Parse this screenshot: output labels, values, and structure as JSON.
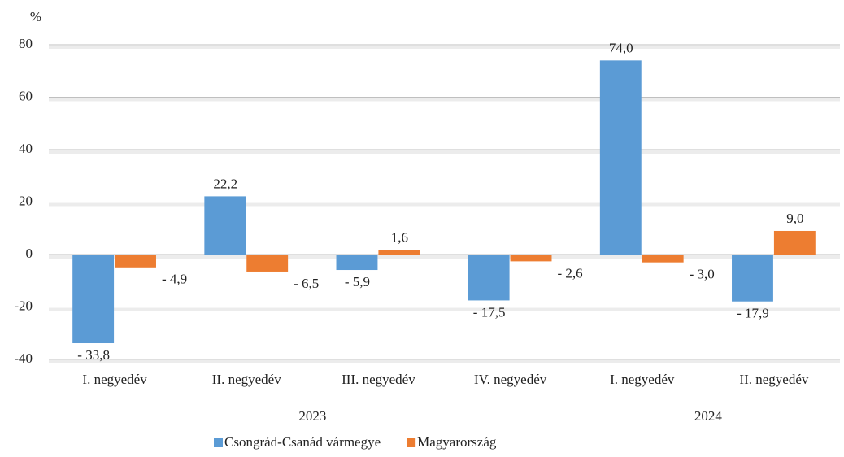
{
  "chart_data": {
    "type": "bar",
    "y_label": "%",
    "category_groups": [
      {
        "label": "2023",
        "categories": [
          "I. negyedév",
          "II. negyedév",
          "III. negyedév",
          "IV. negyedév"
        ]
      },
      {
        "label": "2024",
        "categories": [
          "I. negyedév",
          "II. negyedév"
        ]
      }
    ],
    "series": [
      {
        "name": "Csongrád-Csanád vármegye",
        "color": "#5b9bd5",
        "values": [
          -33.8,
          22.2,
          -5.9,
          -17.5,
          74.0,
          -17.9
        ],
        "value_labels": [
          "- 33,8",
          "22,2",
          "- 5,9",
          "- 17,5",
          "74,0",
          "- 17,9"
        ]
      },
      {
        "name": "Magyarország",
        "color": "#ed7d31",
        "values": [
          -4.9,
          -6.5,
          1.6,
          -2.6,
          -3.0,
          9.0
        ],
        "value_labels": [
          "- 4,9",
          "- 6,5",
          "1,6",
          "- 2,6",
          "- 3,0",
          "9,0"
        ]
      }
    ],
    "ylim": [
      -40,
      80
    ],
    "yticks": [
      -40,
      -20,
      0,
      20,
      40,
      60,
      80
    ],
    "grid": true,
    "legend": "bottom"
  }
}
